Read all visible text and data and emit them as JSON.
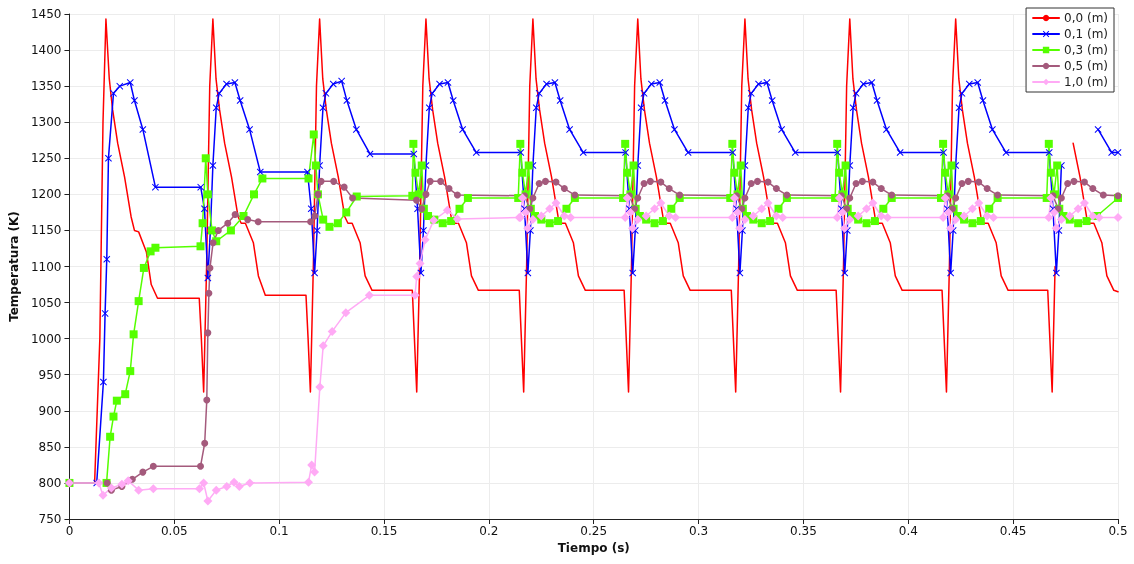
{
  "chart_data": {
    "type": "line",
    "xlabel": "Tiempo (s)",
    "ylabel": "Temperatura (K)",
    "xlim": [
      0,
      0.5
    ],
    "xticks": [
      0,
      0.05,
      0.1,
      0.15,
      0.2,
      0.25,
      0.3,
      0.35,
      0.4,
      0.45,
      0.5
    ],
    "ylim": [
      750,
      1450
    ],
    "yticks": [
      750,
      800,
      850,
      900,
      950,
      1000,
      1050,
      1100,
      1150,
      1200,
      1250,
      1300,
      1350,
      1400,
      1450
    ],
    "grid": true,
    "legend": "top right",
    "line_style": "solid",
    "series": [
      {
        "name": "0,0 (m)",
        "color": "#ff0000",
        "marker": "none",
        "x": [
          0,
          0.012,
          0.0145,
          0.016,
          0.0174,
          0.019,
          0.0206,
          0.023,
          0.0263,
          0.0294,
          0.031,
          0.033,
          0.0367,
          0.039,
          0.042,
          0.0619,
          0.0629,
          0.064,
          0.0654,
          0.0669,
          0.0684,
          0.0699,
          0.0716,
          0.074,
          0.0773,
          0.0804,
          0.0819,
          0.0839,
          0.0877,
          0.0901,
          0.0934,
          0.1128,
          0.1138,
          0.1149,
          0.1163,
          0.1178,
          0.1193,
          0.1208,
          0.1225,
          0.1249,
          0.1282,
          0.1313,
          0.1328,
          0.1348,
          0.1386,
          0.141,
          0.1443,
          0.1635,
          0.1645,
          0.1656,
          0.167,
          0.1685,
          0.17,
          0.1715,
          0.1732,
          0.1756,
          0.1789,
          0.182,
          0.1835,
          0.1855,
          0.1893,
          0.1917,
          0.195,
          0.2145,
          0.2155,
          0.2166,
          0.218,
          0.2195,
          0.221,
          0.2225,
          0.2242,
          0.2266,
          0.2299,
          0.233,
          0.2345,
          0.2365,
          0.2403,
          0.2427,
          0.246,
          0.2645,
          0.2655,
          0.2666,
          0.268,
          0.2695,
          0.271,
          0.2725,
          0.2742,
          0.2766,
          0.2799,
          0.283,
          0.2845,
          0.2865,
          0.2903,
          0.2927,
          0.296,
          0.3156,
          0.3166,
          0.3177,
          0.3191,
          0.3206,
          0.3221,
          0.3236,
          0.3253,
          0.3277,
          0.331,
          0.3341,
          0.3356,
          0.3376,
          0.3414,
          0.3438,
          0.3471,
          0.3656,
          0.3666,
          0.3677,
          0.3691,
          0.3706,
          0.3721,
          0.3736,
          0.3753,
          0.3777,
          0.381,
          0.3841,
          0.3856,
          0.3876,
          0.3914,
          0.3938,
          0.3971,
          0.4161,
          0.4171,
          0.4182,
          0.4196,
          0.4211,
          0.4226,
          0.4241,
          0.4258,
          0.4282,
          0.4315,
          0.4346,
          0.4361,
          0.4381,
          0.4419,
          0.4443,
          0.4476,
          0.4665,
          0.4675,
          0.4686,
          0.47,
          0.4715,
          0.473,
          0.4745,
          0.4762,
          0.4786,
          0.4819,
          0.485,
          0.4865,
          0.4885,
          0.4923,
          0.4947,
          0.498,
          0.5
        ],
        "values": [
          800,
          800,
          1000,
          1300,
          1443,
          1360,
          1317,
          1271,
          1224,
          1169,
          1150,
          1148,
          1120,
          1075,
          1056,
          1056,
          1000,
          926,
          1100,
          1350,
          1443,
          1360,
          1317,
          1271,
          1224,
          1169,
          1160,
          1160,
          1133,
          1087,
          1060,
          1060,
          1000,
          926,
          1100,
          1350,
          1443,
          1360,
          1317,
          1271,
          1224,
          1169,
          1160,
          1160,
          1133,
          1087,
          1067,
          1067,
          1000,
          926,
          1100,
          1350,
          1443,
          1360,
          1317,
          1271,
          1224,
          1169,
          1160,
          1160,
          1133,
          1087,
          1067,
          1067,
          1000,
          926,
          1100,
          1350,
          1443,
          1360,
          1317,
          1271,
          1224,
          1169,
          1160,
          1160,
          1133,
          1087,
          1067,
          1067,
          1000,
          926,
          1100,
          1350,
          1443,
          1360,
          1317,
          1271,
          1224,
          1169,
          1160,
          1160,
          1133,
          1087,
          1067,
          1067,
          1000,
          926,
          1100,
          1350,
          1443,
          1360,
          1317,
          1271,
          1224,
          1169,
          1160,
          1160,
          1133,
          1087,
          1067,
          1067,
          1000,
          926,
          1100,
          1350,
          1443,
          1360,
          1317,
          1271,
          1224,
          1169,
          1160,
          1160,
          1133,
          1087,
          1067,
          1067,
          1000,
          926,
          1100,
          1350,
          1443,
          1360,
          1317,
          1271,
          1224,
          1169,
          1160,
          1160,
          1133,
          1087,
          1067,
          1067,
          1000,
          926,
          1100,
          null,
          null,
          null,
          null,
          1271,
          1224,
          1169,
          1160,
          1160,
          1133,
          1087,
          1067,
          1065
        ]
      },
      {
        "name": "0,1 (m)",
        "color": "#0000ff",
        "marker": "cross",
        "x": [
          0,
          0.013,
          0.0162,
          0.017,
          0.0178,
          0.0186,
          0.021,
          0.024,
          0.029,
          0.031,
          0.035,
          0.041,
          0.0626,
          0.0644,
          0.066,
          0.0672,
          0.0684,
          0.07,
          0.0714,
          0.0749,
          0.0789,
          0.0814,
          0.0859,
          0.091,
          0.1135,
          0.1153,
          0.1169,
          0.1181,
          0.1193,
          0.1209,
          0.1223,
          0.1258,
          0.1298,
          0.1323,
          0.1368,
          0.1433,
          0.1642,
          0.166,
          0.1676,
          0.1688,
          0.17,
          0.1716,
          0.173,
          0.1765,
          0.1805,
          0.183,
          0.1875,
          0.194,
          0.2152,
          0.217,
          0.2186,
          0.2198,
          0.221,
          0.2226,
          0.224,
          0.2275,
          0.2315,
          0.234,
          0.2385,
          0.245,
          0.2652,
          0.267,
          0.2686,
          0.2698,
          0.271,
          0.2726,
          0.274,
          0.2775,
          0.2815,
          0.284,
          0.2885,
          0.295,
          0.3163,
          0.3181,
          0.3197,
          0.3209,
          0.3221,
          0.3237,
          0.3251,
          0.3286,
          0.3326,
          0.3351,
          0.3396,
          0.3461,
          0.3663,
          0.3681,
          0.3697,
          0.3709,
          0.3721,
          0.3737,
          0.3751,
          0.3786,
          0.3826,
          0.3851,
          0.3896,
          0.3961,
          0.4168,
          0.4186,
          0.4202,
          0.4214,
          0.4226,
          0.4242,
          0.4256,
          0.4291,
          0.4331,
          0.4356,
          0.4401,
          0.4466,
          0.4672,
          0.469,
          0.4706,
          0.4718,
          0.473,
          0.4746,
          0.476,
          0.4795,
          0.4835,
          0.486,
          0.4905,
          0.497,
          0.5
        ],
        "values": [
          800,
          800,
          940,
          1035,
          1110,
          1250,
          1340,
          1350,
          1355,
          1330,
          1290,
          1210,
          1210,
          1180,
          1084,
          1150,
          1240,
          1320,
          1340,
          1353,
          1355,
          1330,
          1290,
          1231,
          1231,
          1180,
          1091,
          1150,
          1240,
          1320,
          1340,
          1353,
          1357,
          1330,
          1290,
          1256,
          1256,
          1180,
          1091,
          1150,
          1240,
          1320,
          1340,
          1353,
          1355,
          1330,
          1290,
          1258,
          1258,
          1180,
          1091,
          1150,
          1240,
          1320,
          1340,
          1353,
          1355,
          1330,
          1290,
          1258,
          1258,
          1180,
          1091,
          1150,
          1240,
          1320,
          1340,
          1353,
          1355,
          1330,
          1290,
          1258,
          1258,
          1180,
          1091,
          1150,
          1240,
          1320,
          1340,
          1353,
          1355,
          1330,
          1290,
          1258,
          1258,
          1180,
          1091,
          1150,
          1240,
          1320,
          1340,
          1353,
          1355,
          1330,
          1290,
          1258,
          1258,
          1180,
          1091,
          1150,
          1240,
          1320,
          1340,
          1353,
          1355,
          1330,
          1290,
          1258,
          1258,
          1180,
          1091,
          1150,
          1240,
          null,
          null,
          null,
          null,
          null,
          1290,
          1258,
          1258
        ]
      },
      {
        "name": "0,3 (m)",
        "color": "#55ff00",
        "marker": "square",
        "x": [
          0,
          0.0177,
          0.0194,
          0.021,
          0.0226,
          0.0266,
          0.029,
          0.0306,
          0.033,
          0.0355,
          0.0387,
          0.041,
          0.0625,
          0.0635,
          0.065,
          0.066,
          0.068,
          0.07,
          0.077,
          0.083,
          0.088,
          0.092,
          0.114,
          0.1165,
          0.1175,
          0.1185,
          0.121,
          0.124,
          0.128,
          0.132,
          0.137,
          0.1635,
          0.164,
          0.165,
          0.1665,
          0.168,
          0.169,
          0.171,
          0.174,
          0.178,
          0.182,
          0.186,
          0.19,
          0.214,
          0.215,
          0.216,
          0.2175,
          0.219,
          0.22,
          0.222,
          0.225,
          0.229,
          0.233,
          0.237,
          0.241,
          0.264,
          0.265,
          0.266,
          0.2675,
          0.269,
          0.27,
          0.272,
          0.275,
          0.279,
          0.283,
          0.287,
          0.291,
          0.3151,
          0.3161,
          0.3171,
          0.3186,
          0.3201,
          0.3211,
          0.3231,
          0.3261,
          0.3301,
          0.3341,
          0.3381,
          0.3421,
          0.3651,
          0.3661,
          0.3671,
          0.3686,
          0.3701,
          0.3711,
          0.3731,
          0.3761,
          0.3801,
          0.3841,
          0.3881,
          0.3921,
          0.4156,
          0.4166,
          0.4176,
          0.4191,
          0.4206,
          0.4216,
          0.4236,
          0.4266,
          0.4306,
          0.4346,
          0.4386,
          0.4426,
          0.466,
          0.467,
          0.468,
          0.4695,
          0.471,
          0.472,
          0.474,
          0.477,
          0.481,
          0.485,
          0.49,
          0.5
        ],
        "values": [
          800,
          800,
          864,
          892,
          914,
          923,
          955,
          1006,
          1052,
          1098,
          1121,
          1126,
          1128,
          1160,
          1250,
          1200,
          1150,
          1135,
          1150,
          1170,
          1200,
          1222,
          1222,
          1283,
          1240,
          1200,
          1165,
          1155,
          1160,
          1175,
          1197,
          1198,
          1270,
          1230,
          1200,
          1240,
          1180,
          1170,
          1165,
          1160,
          1163,
          1180,
          1195,
          1195,
          1270,
          1230,
          1200,
          1240,
          1180,
          1170,
          1165,
          1160,
          1163,
          1180,
          1195,
          1195,
          1270,
          1230,
          1200,
          1240,
          1180,
          1170,
          1165,
          1160,
          1163,
          1180,
          1195,
          1195,
          1270,
          1230,
          1200,
          1240,
          1180,
          1170,
          1165,
          1160,
          1163,
          1180,
          1195,
          1195,
          1270,
          1230,
          1200,
          1240,
          1180,
          1170,
          1165,
          1160,
          1163,
          1180,
          1195,
          1195,
          1270,
          1230,
          1200,
          1240,
          1180,
          1170,
          1165,
          1160,
          1163,
          1180,
          1195,
          1195,
          1270,
          1230,
          1200,
          1240,
          1180,
          1170,
          1165,
          1160,
          1163,
          1170,
          1195
        ]
      },
      {
        "name": "0,5 (m)",
        "color": "#a45a7c",
        "marker": "circle",
        "x": [
          0,
          0.018,
          0.02,
          0.025,
          0.03,
          0.035,
          0.04,
          0.0625,
          0.0645,
          0.0655,
          0.066,
          0.0665,
          0.067,
          0.0685,
          0.071,
          0.0755,
          0.079,
          0.085,
          0.09,
          0.115,
          0.117,
          0.1185,
          0.12,
          0.126,
          0.131,
          0.135,
          0.1655,
          0.168,
          0.17,
          0.172,
          0.177,
          0.181,
          0.185,
          0.217,
          0.2195,
          0.221,
          0.224,
          0.227,
          0.232,
          0.236,
          0.241,
          0.267,
          0.2695,
          0.271,
          0.274,
          0.277,
          0.282,
          0.286,
          0.291,
          0.3181,
          0.3206,
          0.3221,
          0.3251,
          0.3281,
          0.3331,
          0.3371,
          0.3421,
          0.3681,
          0.3706,
          0.3721,
          0.3751,
          0.3781,
          0.3831,
          0.3871,
          0.3921,
          0.4186,
          0.4211,
          0.4226,
          0.4256,
          0.4286,
          0.4336,
          0.4376,
          0.4426,
          0.469,
          0.4715,
          0.473,
          0.476,
          0.479,
          0.484,
          0.488,
          0.493,
          0.5
        ],
        "values": [
          800,
          800,
          790,
          795,
          805,
          815,
          823,
          823,
          855,
          915,
          1008,
          1063,
          1098,
          1133,
          1150,
          1160,
          1172,
          1165,
          1162,
          1162,
          1170,
          1200,
          1218,
          1218,
          1210,
          1195,
          1192,
          1180,
          1200,
          1218,
          1218,
          1208,
          1199,
          1198,
          1180,
          1195,
          1215,
          1218,
          1217,
          1208,
          1199,
          1198,
          1180,
          1195,
          1215,
          1218,
          1217,
          1208,
          1199,
          1198,
          1180,
          1195,
          1215,
          1218,
          1217,
          1208,
          1199,
          1198,
          1180,
          1195,
          1215,
          1218,
          1217,
          1208,
          1199,
          1198,
          1180,
          1195,
          1215,
          1218,
          1217,
          1208,
          1199,
          1198,
          1180,
          1195,
          1215,
          1218,
          1217,
          1208,
          1199,
          1198
        ]
      },
      {
        "name": "1,0 (m)",
        "color": "#ffaaf5",
        "marker": "diamond",
        "x": [
          0,
          0.014,
          0.016,
          0.02,
          0.025,
          0.028,
          0.033,
          0.04,
          0.062,
          0.064,
          0.066,
          0.07,
          0.075,
          0.0785,
          0.081,
          0.086,
          0.114,
          0.1155,
          0.1169,
          0.1194,
          0.121,
          0.1253,
          0.1318,
          0.143,
          0.1648,
          0.1656,
          0.1672,
          0.1696,
          0.1737,
          0.1802,
          0.185,
          0.2145,
          0.215,
          0.216,
          0.2175,
          0.2185,
          0.221,
          0.225,
          0.229,
          0.232,
          0.236,
          0.239,
          0.265,
          0.266,
          0.2675,
          0.2685,
          0.271,
          0.275,
          0.279,
          0.282,
          0.286,
          0.289,
          0.3161,
          0.3171,
          0.3186,
          0.3196,
          0.3221,
          0.3261,
          0.3301,
          0.3331,
          0.3371,
          0.3401,
          0.3661,
          0.3671,
          0.3686,
          0.3696,
          0.3721,
          0.3761,
          0.3801,
          0.3831,
          0.3871,
          0.3901,
          0.4166,
          0.4176,
          0.4191,
          0.4201,
          0.4226,
          0.4266,
          0.4306,
          0.4336,
          0.4376,
          0.4406,
          0.467,
          0.468,
          0.4695,
          0.4705,
          0.473,
          0.477,
          0.481,
          0.484,
          0.488,
          0.491,
          0.5
        ],
        "values": [
          800,
          800,
          783,
          793,
          798,
          803,
          790,
          792,
          792,
          800,
          775,
          790,
          795,
          801,
          795,
          800,
          801,
          825,
          815,
          933,
          990,
          1010,
          1036,
          1060,
          1060,
          1086,
          1104,
          1137,
          1164,
          1178,
          1166,
          1168,
          1168,
          1195,
          1175,
          1153,
          1165,
          1170,
          1180,
          1188,
          1170,
          1168,
          1168,
          1195,
          1175,
          1153,
          1165,
          1170,
          1180,
          1188,
          1170,
          1168,
          1168,
          1195,
          1175,
          1153,
          1165,
          1170,
          1180,
          1188,
          1170,
          1168,
          1168,
          1195,
          1175,
          1153,
          1165,
          1170,
          1180,
          1188,
          1170,
          1168,
          1168,
          1195,
          1175,
          1153,
          1165,
          1170,
          1180,
          1188,
          1170,
          1168,
          1168,
          1195,
          1175,
          1153,
          1165,
          1170,
          1180,
          1188,
          1170,
          1168,
          1168
        ]
      }
    ]
  }
}
